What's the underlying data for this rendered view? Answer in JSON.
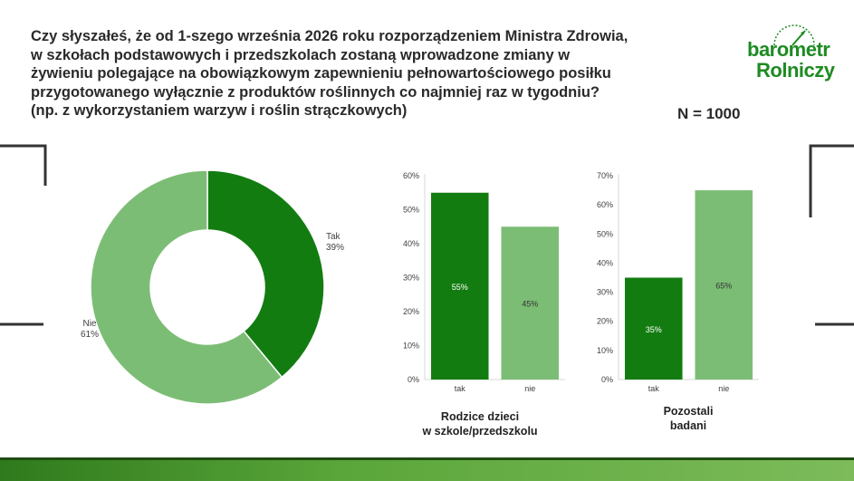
{
  "question": {
    "lines": [
      "Czy słyszałeś, że od 1-szego września 2026 roku rozporządzeniem Ministra Zdrowia,",
      "w szkołach podstawowych i przedszkolach zostaną wprowadzone zmiany w",
      "żywieniu polegające na obowiązkowym zapewnieniu pełnowartościowego posiłku",
      "przygotowanego wyłącznie z produktów roślinnych co najmniej raz w tygodniu?",
      "(np. z wykorzystaniem warzyw i roślin strączkowych)"
    ]
  },
  "sample": "N = 1000",
  "logo": {
    "top": "barometr",
    "bottom": "Rolniczy",
    "color": "#1e8b22"
  },
  "colors": {
    "dark_green": "#137c11",
    "light_green": "#7cbd75",
    "axis": "#d9d9d9",
    "text": "#404040"
  },
  "chart_data": [
    {
      "type": "pie",
      "donut": true,
      "slices": [
        {
          "label": "Tak",
          "value": 39,
          "value_label": "39%",
          "color": "#137c11"
        },
        {
          "label": "Nie",
          "value": 61,
          "value_label": "61%",
          "color": "#7cbd75"
        }
      ]
    },
    {
      "type": "bar",
      "categories": [
        "tak",
        "nie"
      ],
      "values": [
        55,
        45
      ],
      "value_labels": [
        "55%",
        "45%"
      ],
      "colors": [
        "#137c11",
        "#7cbd75"
      ],
      "ylim": [
        0,
        60
      ],
      "yticks": [
        "0%",
        "10%",
        "20%",
        "30%",
        "40%",
        "50%",
        "60%"
      ],
      "xlabel": "Rodzice dzieci\nw szkole/przedszkolu",
      "grid": false
    },
    {
      "type": "bar",
      "categories": [
        "tak",
        "nie"
      ],
      "values": [
        35,
        65
      ],
      "value_labels": [
        "35%",
        "65%"
      ],
      "colors": [
        "#137c11",
        "#7cbd75"
      ],
      "ylim": [
        0,
        70
      ],
      "yticks": [
        "0%",
        "10%",
        "20%",
        "30%",
        "40%",
        "50%",
        "60%",
        "70%"
      ],
      "xlabel": "Pozostali\nbadani",
      "grid": false
    }
  ]
}
